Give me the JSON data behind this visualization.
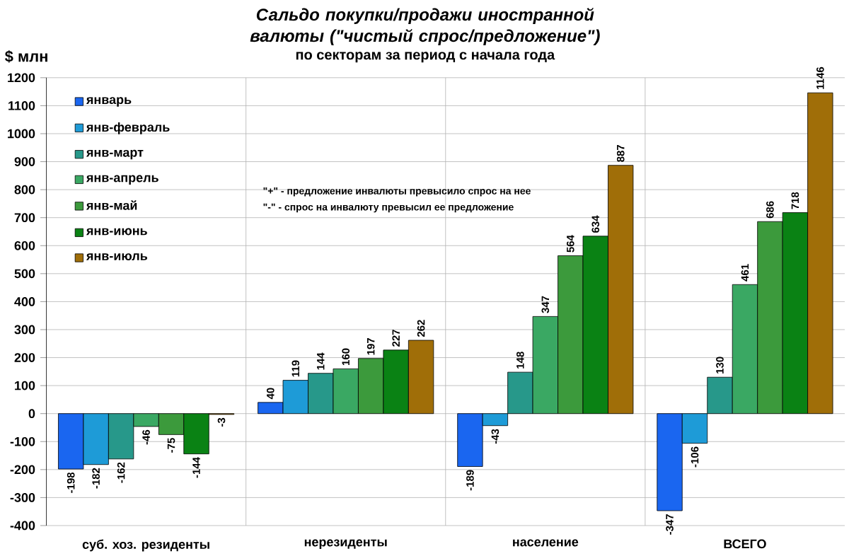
{
  "chart_data": {
    "type": "bar",
    "title": "Сальдо покупки/продажи иностранной валюты (\"чистый спрос/предложение\")",
    "subtitle": "по секторам за период с начала года",
    "ylabel": "$ млн",
    "categories": [
      "суб. хоз. резиденты",
      "нерезиденты",
      "население",
      "ВСЕГО"
    ],
    "series": [
      {
        "name": "январь",
        "color": "#1a66f0",
        "values": [
          -198,
          40,
          -189,
          -347
        ]
      },
      {
        "name": "янв-февраль",
        "color": "#1e9bd7",
        "values": [
          -182,
          119,
          -43,
          -106
        ]
      },
      {
        "name": "янв-март",
        "color": "#27988a",
        "values": [
          -162,
          144,
          148,
          130
        ]
      },
      {
        "name": "янв-апрель",
        "color": "#3aa863",
        "values": [
          -46,
          160,
          347,
          461
        ]
      },
      {
        "name": "янв-май",
        "color": "#3c9a3c",
        "values": [
          -75,
          197,
          564,
          686
        ]
      },
      {
        "name": "янв-июнь",
        "color": "#0a8214",
        "values": [
          -144,
          227,
          634,
          718
        ]
      },
      {
        "name": "янв-июль",
        "color": "#a06e08",
        "values": [
          -3,
          262,
          887,
          1146
        ]
      }
    ],
    "ylim": [
      -400,
      1200
    ],
    "yticks": [
      -400,
      -300,
      -200,
      -100,
      0,
      100,
      200,
      300,
      400,
      500,
      600,
      700,
      800,
      900,
      1000,
      1100,
      1200
    ],
    "grid": true,
    "legend": "top left",
    "data_labels": true,
    "annotations": [
      "\"+\" - предложение инвалюты превысило спрос на нее",
      "\"-\" - спрос на инвалюту превысил ее предложение"
    ]
  }
}
